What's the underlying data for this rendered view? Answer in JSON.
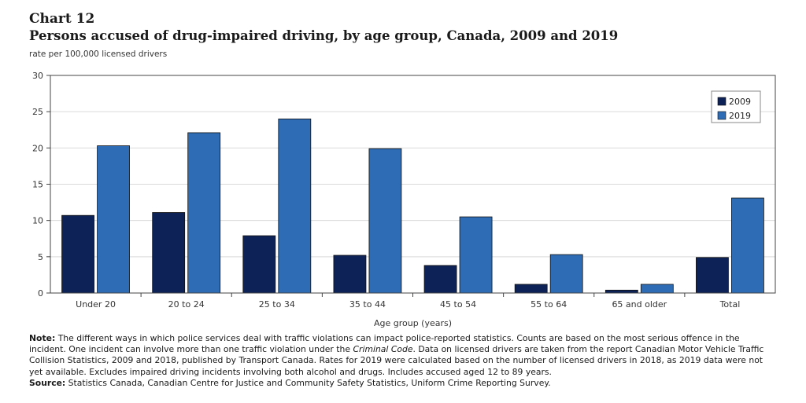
{
  "header": {
    "chart_number": "Chart 12",
    "title": "Persons accused of drug-impaired driving, by age group, Canada, 2009 and 2019",
    "unit": "rate per 100,000 licensed drivers"
  },
  "chart_data": {
    "type": "bar",
    "categories": [
      "Under 20",
      "20 to 24",
      "25 to 34",
      "35 to 44",
      "45 to 54",
      "55 to 64",
      "65 and older",
      "Total"
    ],
    "series": [
      {
        "name": "2009",
        "color": "#0d2257",
        "values": [
          10.7,
          11.1,
          7.9,
          5.2,
          3.8,
          1.2,
          0.4,
          4.9
        ]
      },
      {
        "name": "2019",
        "color": "#2e6db5",
        "values": [
          20.3,
          22.1,
          24.0,
          19.9,
          10.5,
          5.3,
          1.2,
          13.1
        ]
      }
    ],
    "title": "Persons accused of drug-impaired driving, by age group, Canada, 2009 and 2019",
    "xlabel": "Age group (years)",
    "ylabel": "rate per 100,000 licensed drivers",
    "ylim": [
      0,
      30
    ],
    "yticks": [
      0,
      5,
      10,
      15,
      20,
      25,
      30
    ],
    "grid": true,
    "legend_position": "top-right"
  },
  "footnote": {
    "note_label": "Note:",
    "note_part1": " The different ways in which police services deal with traffic violations can impact police-reported statistics. Counts are based on the most serious offence in the incident. One incident can involve more than one traffic violation under the ",
    "note_italic": "Criminal Code",
    "note_part2": ". Data on licensed drivers are taken from the report Canadian Motor Vehicle Traffic Collision Statistics, 2009 and 2018, published by Transport Canada. Rates for 2019 were calculated based on the number of licensed drivers in 2018, as 2019 data were not yet available. Excludes impaired driving incidents involving both alcohol and drugs. Includes accused aged 12 to 89 years.",
    "source_label": "Source:",
    "source_text": " Statistics Canada, Canadian Centre for Justice and Community Safety Statistics, Uniform Crime Reporting Survey."
  }
}
